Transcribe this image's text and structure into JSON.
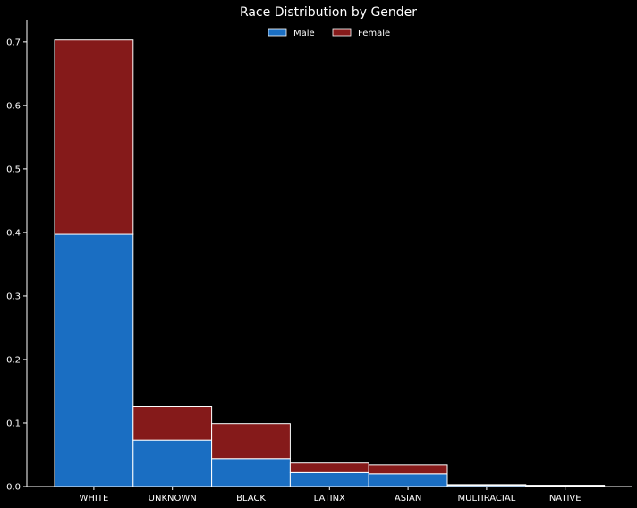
{
  "chart_data": {
    "type": "bar",
    "stacked": true,
    "title": "Race Distribution by Gender",
    "xlabel": "",
    "ylabel": "",
    "categories": [
      "WHITE",
      "UNKNOWN",
      "BLACK",
      "LATINX",
      "ASIAN",
      "MULTIRACIAL",
      "NATIVE"
    ],
    "series": [
      {
        "name": "Male",
        "color": "#1a6ec2",
        "values": [
          0.397,
          0.073,
          0.044,
          0.022,
          0.02,
          0.002,
          0.001
        ]
      },
      {
        "name": "Female",
        "color": "#851a1a",
        "values": [
          0.306,
          0.053,
          0.055,
          0.015,
          0.014,
          0.001,
          0.001
        ]
      }
    ],
    "ylim": [
      0,
      0.735
    ],
    "yticks": [
      "0.0",
      "0.1",
      "0.2",
      "0.3",
      "0.4",
      "0.5",
      "0.6",
      "0.7"
    ],
    "grid": false,
    "legend_position": "top-center"
  }
}
